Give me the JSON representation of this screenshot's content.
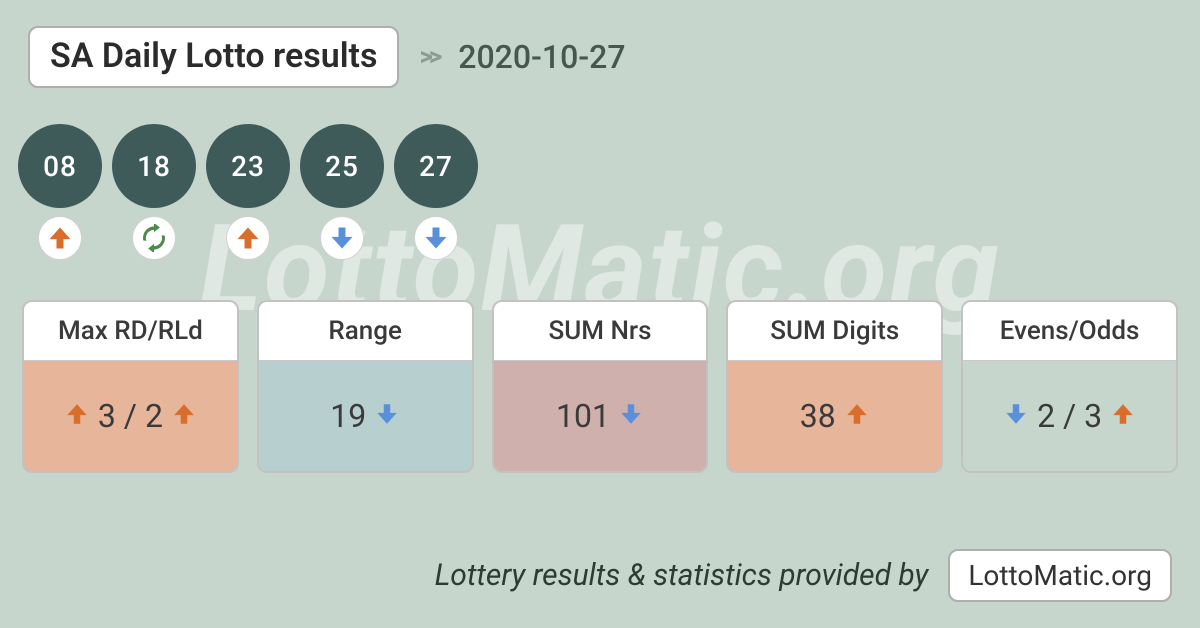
{
  "colors": {
    "background": "#c6d6cc",
    "ball_fill": "#3e5b5a",
    "arrow_up": "#d96d2b",
    "arrow_down": "#5a8fdc",
    "refresh": "#4a8a4a",
    "card_border": "#c2c2c2"
  },
  "header": {
    "title": "SA Daily Lotto results",
    "date": "2020-10-27"
  },
  "balls": [
    {
      "number": "08",
      "trend": "up"
    },
    {
      "number": "18",
      "trend": "refresh"
    },
    {
      "number": "23",
      "trend": "up"
    },
    {
      "number": "25",
      "trend": "down"
    },
    {
      "number": "27",
      "trend": "down"
    }
  ],
  "stats": [
    {
      "label": "Max RD/RLd",
      "body_bg": "#e6b59a",
      "segments": [
        {
          "kind": "arrow",
          "dir": "up"
        },
        {
          "kind": "text",
          "value": "3 / 2"
        },
        {
          "kind": "arrow",
          "dir": "up"
        }
      ]
    },
    {
      "label": "Range",
      "body_bg": "#b7cfcf",
      "segments": [
        {
          "kind": "text",
          "value": "19"
        },
        {
          "kind": "arrow",
          "dir": "down"
        }
      ]
    },
    {
      "label": "SUM Nrs",
      "body_bg": "#cfb0ac",
      "segments": [
        {
          "kind": "text",
          "value": "101"
        },
        {
          "kind": "arrow",
          "dir": "down"
        }
      ]
    },
    {
      "label": "SUM Digits",
      "body_bg": "#e6b59a",
      "segments": [
        {
          "kind": "text",
          "value": "38"
        },
        {
          "kind": "arrow",
          "dir": "up"
        }
      ]
    },
    {
      "label": "Evens/Odds",
      "body_bg": "#c6d6cc",
      "segments": [
        {
          "kind": "arrow",
          "dir": "down"
        },
        {
          "kind": "text",
          "value": "2 / 3"
        },
        {
          "kind": "arrow",
          "dir": "up"
        }
      ]
    }
  ],
  "footer": {
    "text": "Lottery results & statistics provided by",
    "brand": "LottoMatic.org"
  },
  "watermark": "LottoMatic.org"
}
